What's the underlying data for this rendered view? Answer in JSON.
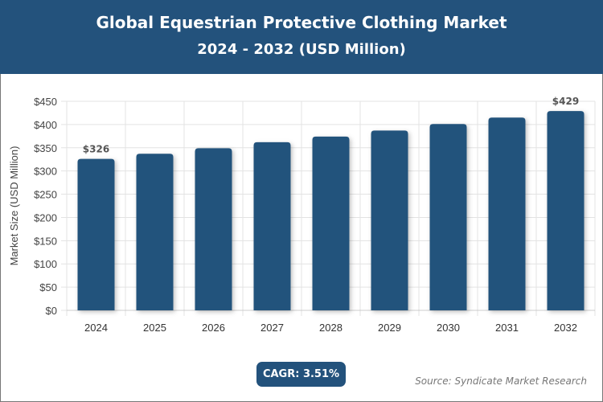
{
  "header": {
    "title": "Global Equestrian Protective Clothing Market",
    "subtitle": "2024 - 2032 (USD Million)"
  },
  "chart_data": {
    "type": "bar",
    "categories": [
      "2024",
      "2025",
      "2026",
      "2027",
      "2028",
      "2029",
      "2030",
      "2031",
      "2032"
    ],
    "values": [
      326,
      337,
      349,
      362,
      374,
      387,
      401,
      415,
      429
    ],
    "data_labels": {
      "0": "$326",
      "8": "$429"
    },
    "ylabel": "Market Size (USD Million)",
    "xlabel": "",
    "ylim": [
      0,
      450
    ],
    "yticks": [
      "$0",
      "$50",
      "$100",
      "$150",
      "$200",
      "$250",
      "$300",
      "$350",
      "$400",
      "$450"
    ],
    "grid": true,
    "bar_color": "#23527c"
  },
  "footer": {
    "cagr": "CAGR: 3.51%",
    "source": "Source: Syndicate Market Research"
  }
}
